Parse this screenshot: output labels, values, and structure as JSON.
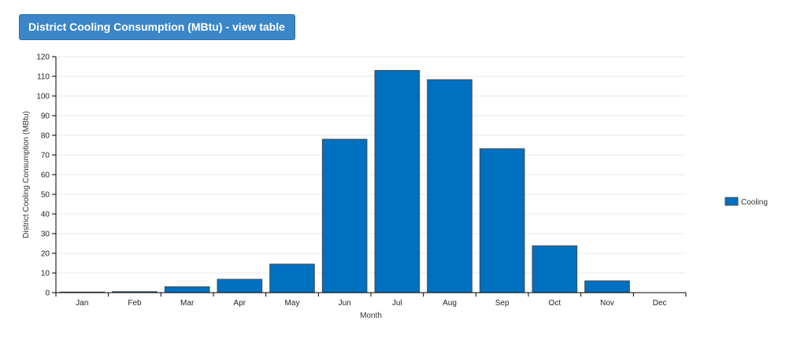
{
  "header": {
    "title_button_label": "District Cooling Consumption (MBtu) - view table"
  },
  "colors": {
    "bar_fill": "#0070c0",
    "bar_stroke": "#4d4d4d",
    "title_bg": "#3a86c9",
    "grid": "#e8e8e8",
    "axis": "#000000"
  },
  "chart_data": {
    "type": "bar",
    "title": "",
    "xlabel": "Month",
    "ylabel": "District Cooling Consumption (MBtu)",
    "categories": [
      "Jan",
      "Feb",
      "Mar",
      "Apr",
      "May",
      "Jun",
      "Jul",
      "Aug",
      "Sep",
      "Oct",
      "Nov",
      "Dec"
    ],
    "series": [
      {
        "name": "Cooling",
        "values": [
          0.3,
          0.5,
          3,
          6.8,
          14.5,
          78,
          113,
          108.3,
          73.2,
          23.8,
          6,
          0
        ]
      }
    ],
    "ylim": [
      0,
      120
    ],
    "yticks": [
      0,
      10,
      20,
      30,
      40,
      50,
      60,
      70,
      80,
      90,
      100,
      110,
      120
    ],
    "grid": true,
    "legend_position": "right"
  }
}
